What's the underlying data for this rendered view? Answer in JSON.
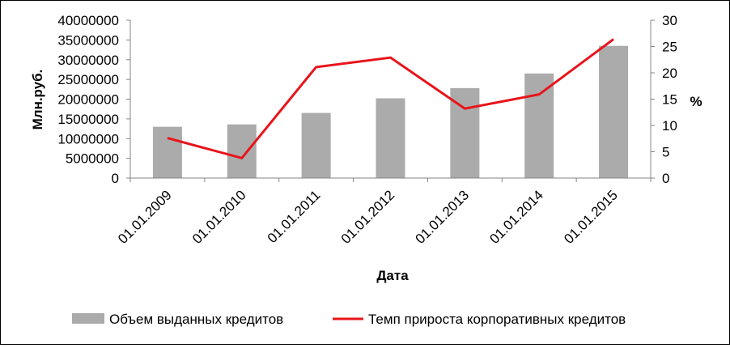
{
  "chart_data": {
    "type": "bar+line",
    "categories": [
      "01.01.2009",
      "01.01.2010",
      "01.01.2011",
      "01.01.2012",
      "01.01.2013",
      "01.01.2014",
      "01.01.2015"
    ],
    "series": [
      {
        "name": "Объем выданных кредитов",
        "type": "bar",
        "axis": "left",
        "color": "#ababab",
        "values": [
          13000000,
          13600000,
          16500000,
          20200000,
          22800000,
          26500000,
          33500000
        ]
      },
      {
        "name": "Темп прироста корпоративных кредитов",
        "type": "line",
        "axis": "right",
        "color": "#e8141b",
        "values": [
          7.6,
          3.8,
          21.1,
          22.9,
          13.2,
          15.9,
          26.4
        ]
      }
    ],
    "xlabel": "Дата",
    "ylabel": "Млн.руб.",
    "y2label": "%",
    "ylim": [
      0,
      40000000
    ],
    "yticks": [
      "0",
      "5000000",
      "10000000",
      "15000000",
      "20000000",
      "25000000",
      "30000000",
      "35000000",
      "40000000"
    ],
    "y2lim": [
      0,
      30
    ],
    "y2ticks": [
      "0",
      "5",
      "10",
      "15",
      "20",
      "25",
      "30"
    ],
    "grid": false,
    "legend_position": "bottom"
  }
}
